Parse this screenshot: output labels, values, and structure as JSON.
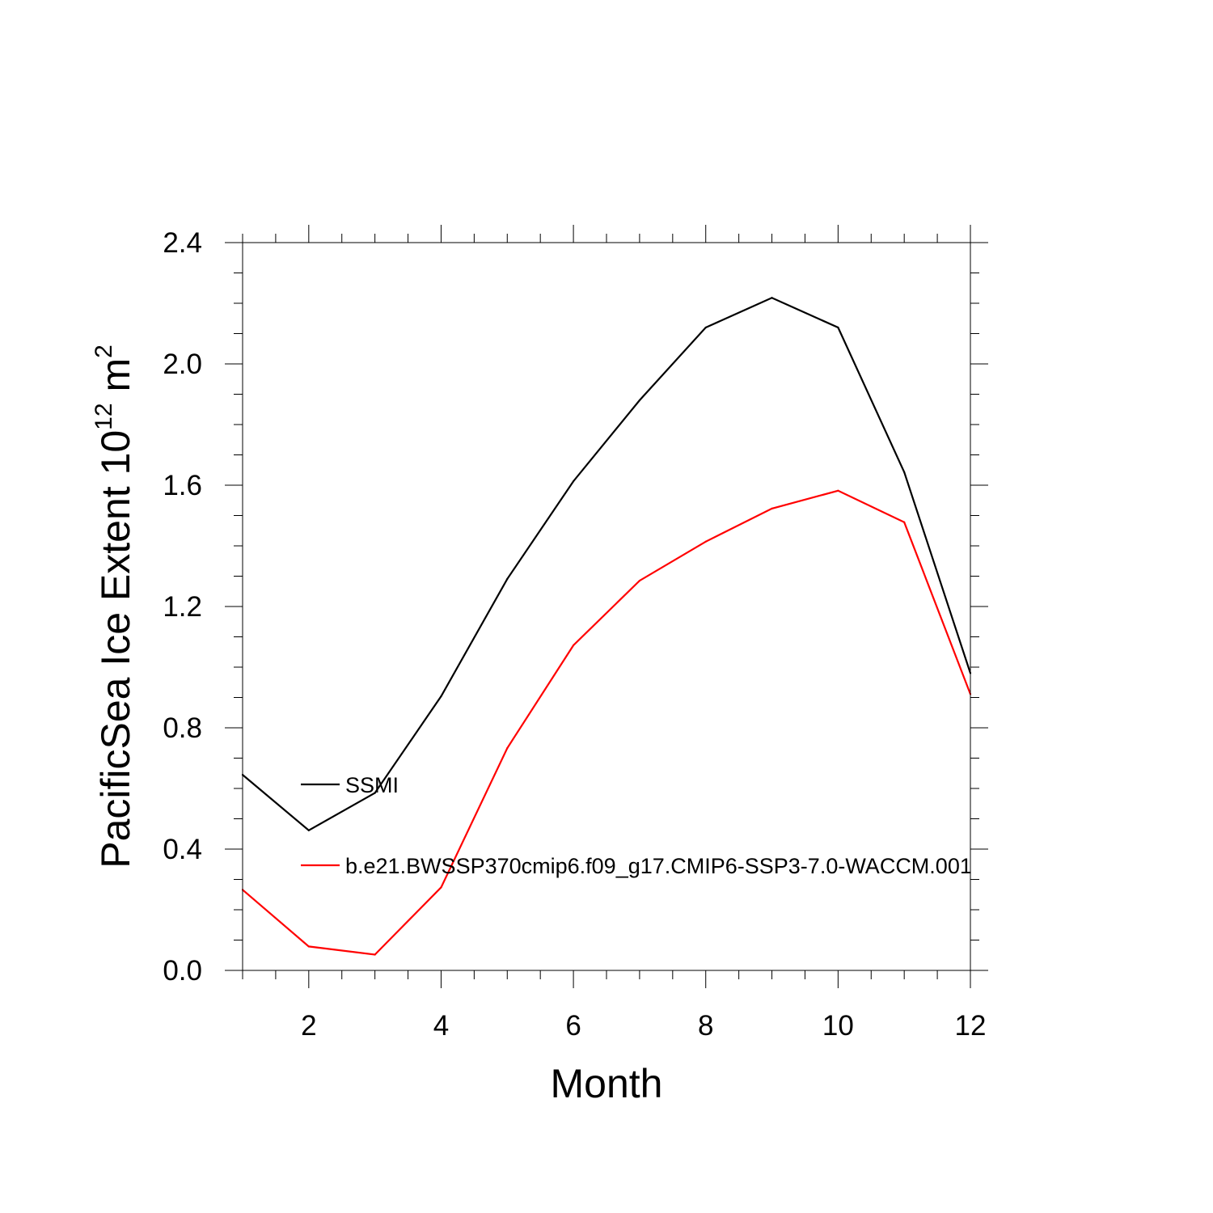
{
  "chart_data": {
    "type": "line",
    "title": "",
    "xlabel": "Month",
    "ylabel": {
      "text": "PacificSea Ice Extent 10",
      "exponent": "12",
      "unit": " m",
      "unit_exponent": "2"
    },
    "xlim": [
      1,
      12
    ],
    "ylim": [
      0,
      2.4
    ],
    "x_ticks": [
      2,
      4,
      6,
      8,
      10,
      12
    ],
    "x_tick_labels": [
      "2",
      "4",
      "6",
      "8",
      "10",
      "12"
    ],
    "y_ticks": [
      0,
      0.4,
      0.8,
      1.2,
      1.6,
      2.0,
      2.4
    ],
    "y_tick_labels": [
      "0.0",
      "0.4",
      "0.8",
      "1.2",
      "1.6",
      "2.0",
      "2.4"
    ],
    "grid": false,
    "legend_position": "inside-left",
    "x": [
      1,
      2,
      3,
      4,
      5,
      6,
      7,
      8,
      9,
      10,
      11,
      12
    ],
    "series": [
      {
        "name": "SSMI",
        "color": "#000000",
        "values": [
          0.645,
          0.462,
          0.585,
          0.904,
          1.291,
          1.613,
          1.88,
          2.12,
          2.218,
          2.12,
          1.643,
          0.98
        ]
      },
      {
        "name": "b.e21.BWSSP370cmip6.f09_g17.CMIP6-SSP3-7.0-WACCM.001",
        "color": "#ff0000",
        "values": [
          0.266,
          0.079,
          0.052,
          0.274,
          0.733,
          1.072,
          1.285,
          1.414,
          1.523,
          1.582,
          1.478,
          0.911
        ]
      }
    ]
  }
}
